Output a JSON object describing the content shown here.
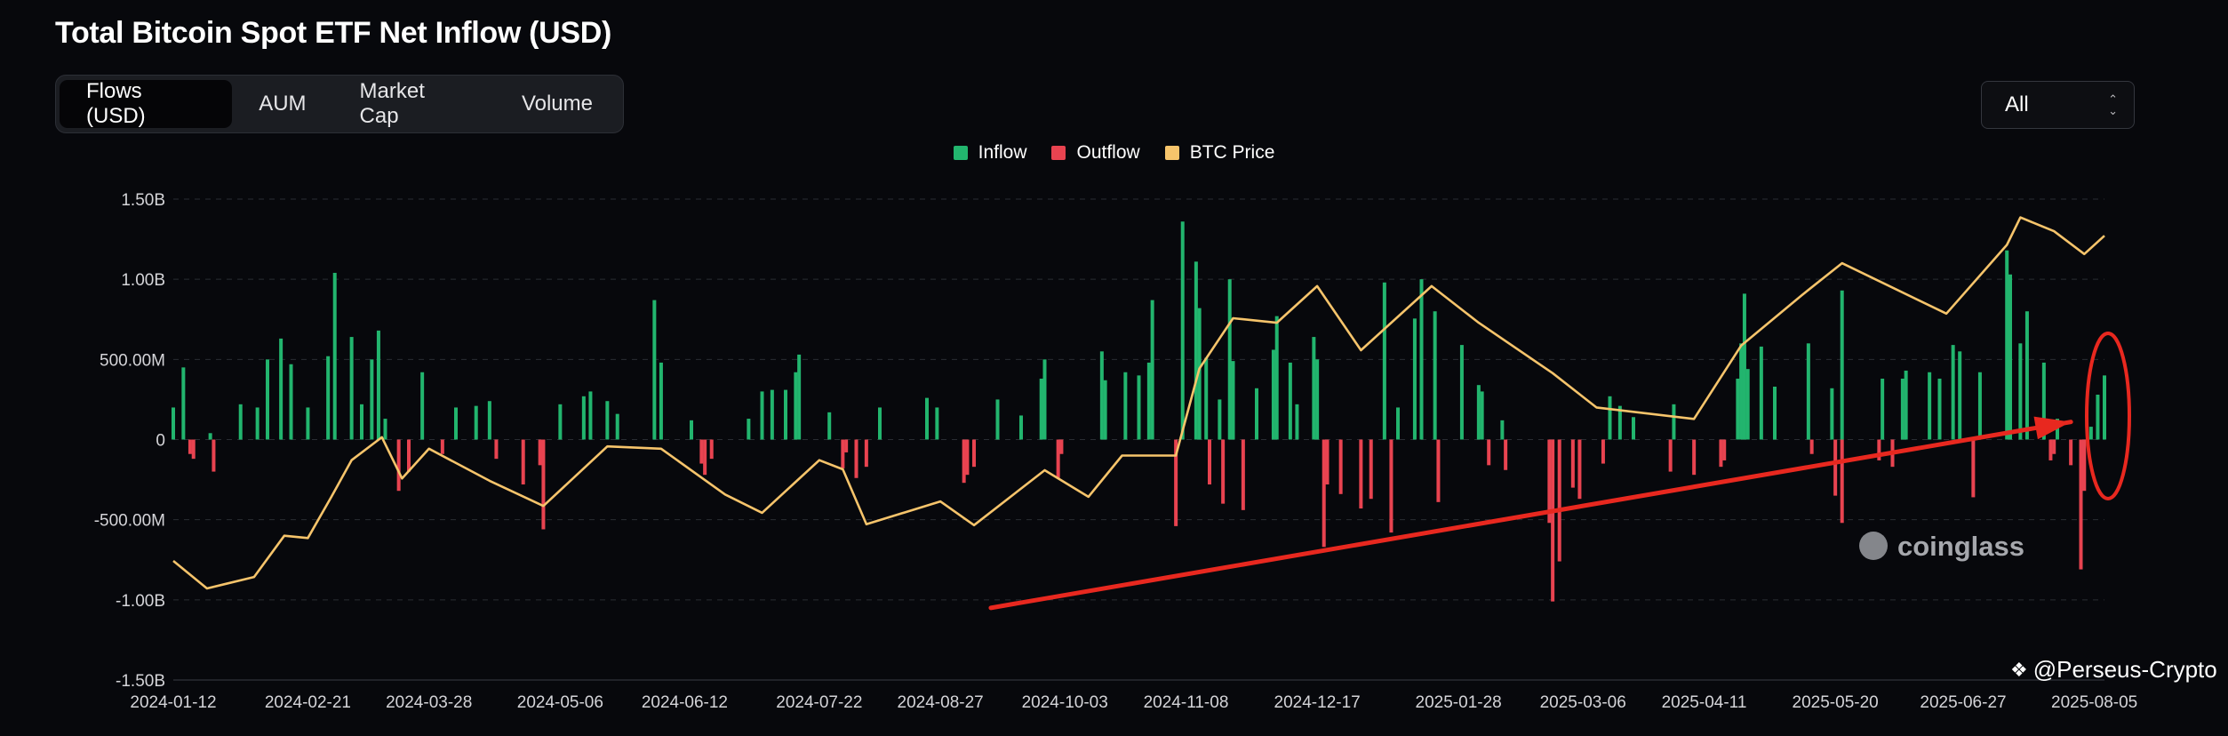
{
  "header": {
    "title": "Total Bitcoin Spot ETF Net Inflow (USD)"
  },
  "tabs": [
    {
      "label": "Flows (USD)",
      "active": true
    },
    {
      "label": "AUM",
      "active": false
    },
    {
      "label": "Market Cap",
      "active": false
    },
    {
      "label": "Volume",
      "active": false
    }
  ],
  "range_select": {
    "value": "All"
  },
  "legend": [
    {
      "label": "Inflow",
      "color": "#22b56e"
    },
    {
      "label": "Outflow",
      "color": "#e84350"
    },
    {
      "label": "BTC Price",
      "color": "#f6c46b"
    }
  ],
  "watermark": {
    "brand": "coinglass"
  },
  "credit": {
    "text": "@Perseus-Crypto"
  },
  "chart_data": {
    "type": "bar",
    "y_ticks": [
      "1.50B",
      "1.00B",
      "500.00M",
      "0",
      "-500.00M",
      "-1.00B",
      "-1.50B"
    ],
    "x_ticks": [
      "2024-01-12",
      "2024-02-21",
      "2024-03-28",
      "2024-05-06",
      "2024-06-12",
      "2024-07-22",
      "2024-08-27",
      "2024-10-03",
      "2024-11-08",
      "2024-12-17",
      "2025-01-28",
      "2025-03-06",
      "2025-04-11",
      "2025-05-20",
      "2025-06-27",
      "2025-08-05"
    ],
    "ylim": [
      -1500000000,
      1500000000
    ],
    "grid": true,
    "legend_position": "top-center",
    "series": [
      {
        "name": "Inflow",
        "color": "#22b56e",
        "points": [
          [
            "2024-01-12",
            200000000
          ],
          [
            "2024-01-15",
            450000000
          ],
          [
            "2024-01-23",
            40000000
          ],
          [
            "2024-02-01",
            220000000
          ],
          [
            "2024-02-06",
            200000000
          ],
          [
            "2024-02-09",
            500000000
          ],
          [
            "2024-02-13",
            630000000
          ],
          [
            "2024-02-16",
            470000000
          ],
          [
            "2024-02-21",
            200000000
          ],
          [
            "2024-02-27",
            520000000
          ],
          [
            "2024-02-29",
            1040000000
          ],
          [
            "2024-03-05",
            640000000
          ],
          [
            "2024-03-08",
            220000000
          ],
          [
            "2024-03-11",
            500000000
          ],
          [
            "2024-03-13",
            680000000
          ],
          [
            "2024-03-15",
            130000000
          ],
          [
            "2024-03-26",
            420000000
          ],
          [
            "2024-04-05",
            200000000
          ],
          [
            "2024-04-11",
            210000000
          ],
          [
            "2024-04-15",
            240000000
          ],
          [
            "2024-05-06",
            220000000
          ],
          [
            "2024-05-13",
            270000000
          ],
          [
            "2024-05-15",
            300000000
          ],
          [
            "2024-05-20",
            240000000
          ],
          [
            "2024-05-23",
            160000000
          ],
          [
            "2024-06-03",
            870000000
          ],
          [
            "2024-06-05",
            480000000
          ],
          [
            "2024-06-14",
            120000000
          ],
          [
            "2024-07-01",
            130000000
          ],
          [
            "2024-07-05",
            300000000
          ],
          [
            "2024-07-08",
            310000000
          ],
          [
            "2024-07-12",
            310000000
          ],
          [
            "2024-07-15",
            420000000
          ],
          [
            "2024-07-16",
            530000000
          ],
          [
            "2024-07-25",
            170000000
          ],
          [
            "2024-08-09",
            200000000
          ],
          [
            "2024-08-23",
            260000000
          ],
          [
            "2024-08-26",
            200000000
          ],
          [
            "2024-09-13",
            250000000
          ],
          [
            "2024-09-20",
            150000000
          ],
          [
            "2024-09-26",
            380000000
          ],
          [
            "2024-09-27",
            500000000
          ],
          [
            "2024-10-14",
            550000000
          ],
          [
            "2024-10-15",
            370000000
          ],
          [
            "2024-10-21",
            420000000
          ],
          [
            "2024-10-25",
            400000000
          ],
          [
            "2024-10-28",
            480000000
          ],
          [
            "2024-10-29",
            870000000
          ],
          [
            "2024-11-07",
            1360000000
          ],
          [
            "2024-11-11",
            1110000000
          ],
          [
            "2024-11-12",
            820000000
          ],
          [
            "2024-11-14",
            510000000
          ],
          [
            "2024-11-18",
            250000000
          ],
          [
            "2024-11-21",
            1000000000
          ],
          [
            "2024-11-22",
            490000000
          ],
          [
            "2024-11-29",
            320000000
          ],
          [
            "2024-12-04",
            560000000
          ],
          [
            "2024-12-05",
            770000000
          ],
          [
            "2024-12-09",
            480000000
          ],
          [
            "2024-12-11",
            220000000
          ],
          [
            "2024-12-16",
            640000000
          ],
          [
            "2024-12-17",
            500000000
          ],
          [
            "2025-01-06",
            980000000
          ],
          [
            "2025-01-10",
            200000000
          ],
          [
            "2025-01-15",
            755000000
          ],
          [
            "2025-01-17",
            1000000000
          ],
          [
            "2025-01-21",
            800000000
          ],
          [
            "2025-01-29",
            590000000
          ],
          [
            "2025-02-03",
            340000000
          ],
          [
            "2025-02-04",
            300000000
          ],
          [
            "2025-02-10",
            120000000
          ],
          [
            "2025-03-14",
            270000000
          ],
          [
            "2025-03-17",
            210000000
          ],
          [
            "2025-03-21",
            140000000
          ],
          [
            "2025-04-02",
            220000000
          ],
          [
            "2025-04-21",
            380000000
          ],
          [
            "2025-04-22",
            600000000
          ],
          [
            "2025-04-23",
            910000000
          ],
          [
            "2025-04-24",
            440000000
          ],
          [
            "2025-04-28",
            580000000
          ],
          [
            "2025-05-02",
            330000000
          ],
          [
            "2025-05-12",
            600000000
          ],
          [
            "2025-05-19",
            320000000
          ],
          [
            "2025-05-22",
            930000000
          ],
          [
            "2025-06-03",
            380000000
          ],
          [
            "2025-06-09",
            380000000
          ],
          [
            "2025-06-10",
            430000000
          ],
          [
            "2025-06-17",
            420000000
          ],
          [
            "2025-06-20",
            380000000
          ],
          [
            "2025-06-24",
            590000000
          ],
          [
            "2025-06-26",
            550000000
          ],
          [
            "2025-07-02",
            420000000
          ],
          [
            "2025-07-10",
            1180000000
          ],
          [
            "2025-07-11",
            1030000000
          ],
          [
            "2025-07-14",
            600000000
          ],
          [
            "2025-07-16",
            800000000
          ],
          [
            "2025-07-21",
            480000000
          ],
          [
            "2025-07-25",
            130000000
          ],
          [
            "2025-08-04",
            80000000
          ],
          [
            "2025-08-06",
            280000000
          ],
          [
            "2025-08-08",
            400000000
          ]
        ]
      },
      {
        "name": "Outflow",
        "color": "#e84350",
        "points": [
          [
            "2024-01-17",
            -90000000
          ],
          [
            "2024-01-18",
            -120000000
          ],
          [
            "2024-01-24",
            -200000000
          ],
          [
            "2024-03-19",
            -320000000
          ],
          [
            "2024-03-22",
            -200000000
          ],
          [
            "2024-04-01",
            -90000000
          ],
          [
            "2024-04-17",
            -120000000
          ],
          [
            "2024-04-25",
            -280000000
          ],
          [
            "2024-04-30",
            -160000000
          ],
          [
            "2024-05-01",
            -560000000
          ],
          [
            "2024-06-17",
            -150000000
          ],
          [
            "2024-06-18",
            -220000000
          ],
          [
            "2024-06-20",
            -120000000
          ],
          [
            "2024-07-29",
            -180000000
          ],
          [
            "2024-07-30",
            -80000000
          ],
          [
            "2024-08-02",
            -240000000
          ],
          [
            "2024-08-05",
            -170000000
          ],
          [
            "2024-09-03",
            -270000000
          ],
          [
            "2024-09-04",
            -220000000
          ],
          [
            "2024-09-06",
            -170000000
          ],
          [
            "2024-10-01",
            -240000000
          ],
          [
            "2024-10-02",
            -90000000
          ],
          [
            "2024-11-05",
            -540000000
          ],
          [
            "2024-11-15",
            -280000000
          ],
          [
            "2024-11-19",
            -400000000
          ],
          [
            "2024-11-25",
            -440000000
          ],
          [
            "2024-12-19",
            -670000000
          ],
          [
            "2024-12-20",
            -280000000
          ],
          [
            "2024-12-24",
            -340000000
          ],
          [
            "2024-12-30",
            -430000000
          ],
          [
            "2025-01-02",
            -370000000
          ],
          [
            "2025-01-08",
            -580000000
          ],
          [
            "2025-01-22",
            -390000000
          ],
          [
            "2025-02-06",
            -160000000
          ],
          [
            "2025-02-11",
            -190000000
          ],
          [
            "2025-02-24",
            -520000000
          ],
          [
            "2025-02-25",
            -1010000000
          ],
          [
            "2025-02-27",
            -760000000
          ],
          [
            "2025-03-03",
            -300000000
          ],
          [
            "2025-03-05",
            -370000000
          ],
          [
            "2025-03-12",
            -150000000
          ],
          [
            "2025-04-01",
            -200000000
          ],
          [
            "2025-04-08",
            -220000000
          ],
          [
            "2025-04-16",
            -170000000
          ],
          [
            "2025-04-17",
            -130000000
          ],
          [
            "2025-05-13",
            -90000000
          ],
          [
            "2025-05-20",
            -350000000
          ],
          [
            "2025-05-22",
            -520000000
          ],
          [
            "2025-06-02",
            -130000000
          ],
          [
            "2025-06-06",
            -170000000
          ],
          [
            "2025-06-30",
            -360000000
          ],
          [
            "2025-07-23",
            -130000000
          ],
          [
            "2025-07-24",
            -90000000
          ],
          [
            "2025-07-29",
            -160000000
          ],
          [
            "2025-08-01",
            -810000000
          ],
          [
            "2025-08-02",
            -320000000
          ]
        ]
      },
      {
        "name": "BTC Price",
        "color": "#f6c46b",
        "points": [
          [
            "2024-01-12",
            46000
          ],
          [
            "2024-01-22",
            40000
          ],
          [
            "2024-02-05",
            42500
          ],
          [
            "2024-02-14",
            51500
          ],
          [
            "2024-02-21",
            51000
          ],
          [
            "2024-02-28",
            60000
          ],
          [
            "2024-03-05",
            68000
          ],
          [
            "2024-03-14",
            73000
          ],
          [
            "2024-03-20",
            64000
          ],
          [
            "2024-03-28",
            70500
          ],
          [
            "2024-04-15",
            63500
          ],
          [
            "2024-05-01",
            58000
          ],
          [
            "2024-05-20",
            71000
          ],
          [
            "2024-06-05",
            70500
          ],
          [
            "2024-06-24",
            60500
          ],
          [
            "2024-07-05",
            56500
          ],
          [
            "2024-07-22",
            68000
          ],
          [
            "2024-07-29",
            66000
          ],
          [
            "2024-08-05",
            54000
          ],
          [
            "2024-08-27",
            59000
          ],
          [
            "2024-09-06",
            53800
          ],
          [
            "2024-09-27",
            65800
          ],
          [
            "2024-10-10",
            60000
          ],
          [
            "2024-10-20",
            69000
          ],
          [
            "2024-11-05",
            69000
          ],
          [
            "2024-11-12",
            88000
          ],
          [
            "2024-11-22",
            99000
          ],
          [
            "2024-12-05",
            98000
          ],
          [
            "2024-12-17",
            106000
          ],
          [
            "2024-12-30",
            92000
          ],
          [
            "2025-01-20",
            106000
          ],
          [
            "2025-02-03",
            98000
          ],
          [
            "2025-02-25",
            87000
          ],
          [
            "2025-03-10",
            79500
          ],
          [
            "2025-04-08",
            77000
          ],
          [
            "2025-04-22",
            93000
          ],
          [
            "2025-05-10",
            104000
          ],
          [
            "2025-05-22",
            111000
          ],
          [
            "2025-06-22",
            100000
          ],
          [
            "2025-07-10",
            115000
          ],
          [
            "2025-07-14",
            121000
          ],
          [
            "2025-07-24",
            118000
          ],
          [
            "2025-08-02",
            113000
          ],
          [
            "2025-08-08",
            117000
          ]
        ]
      }
    ],
    "annotations": [
      "red upward trend arrow from 2024-09-11 to 2025-08-05",
      "red ellipse around latest bars"
    ]
  }
}
